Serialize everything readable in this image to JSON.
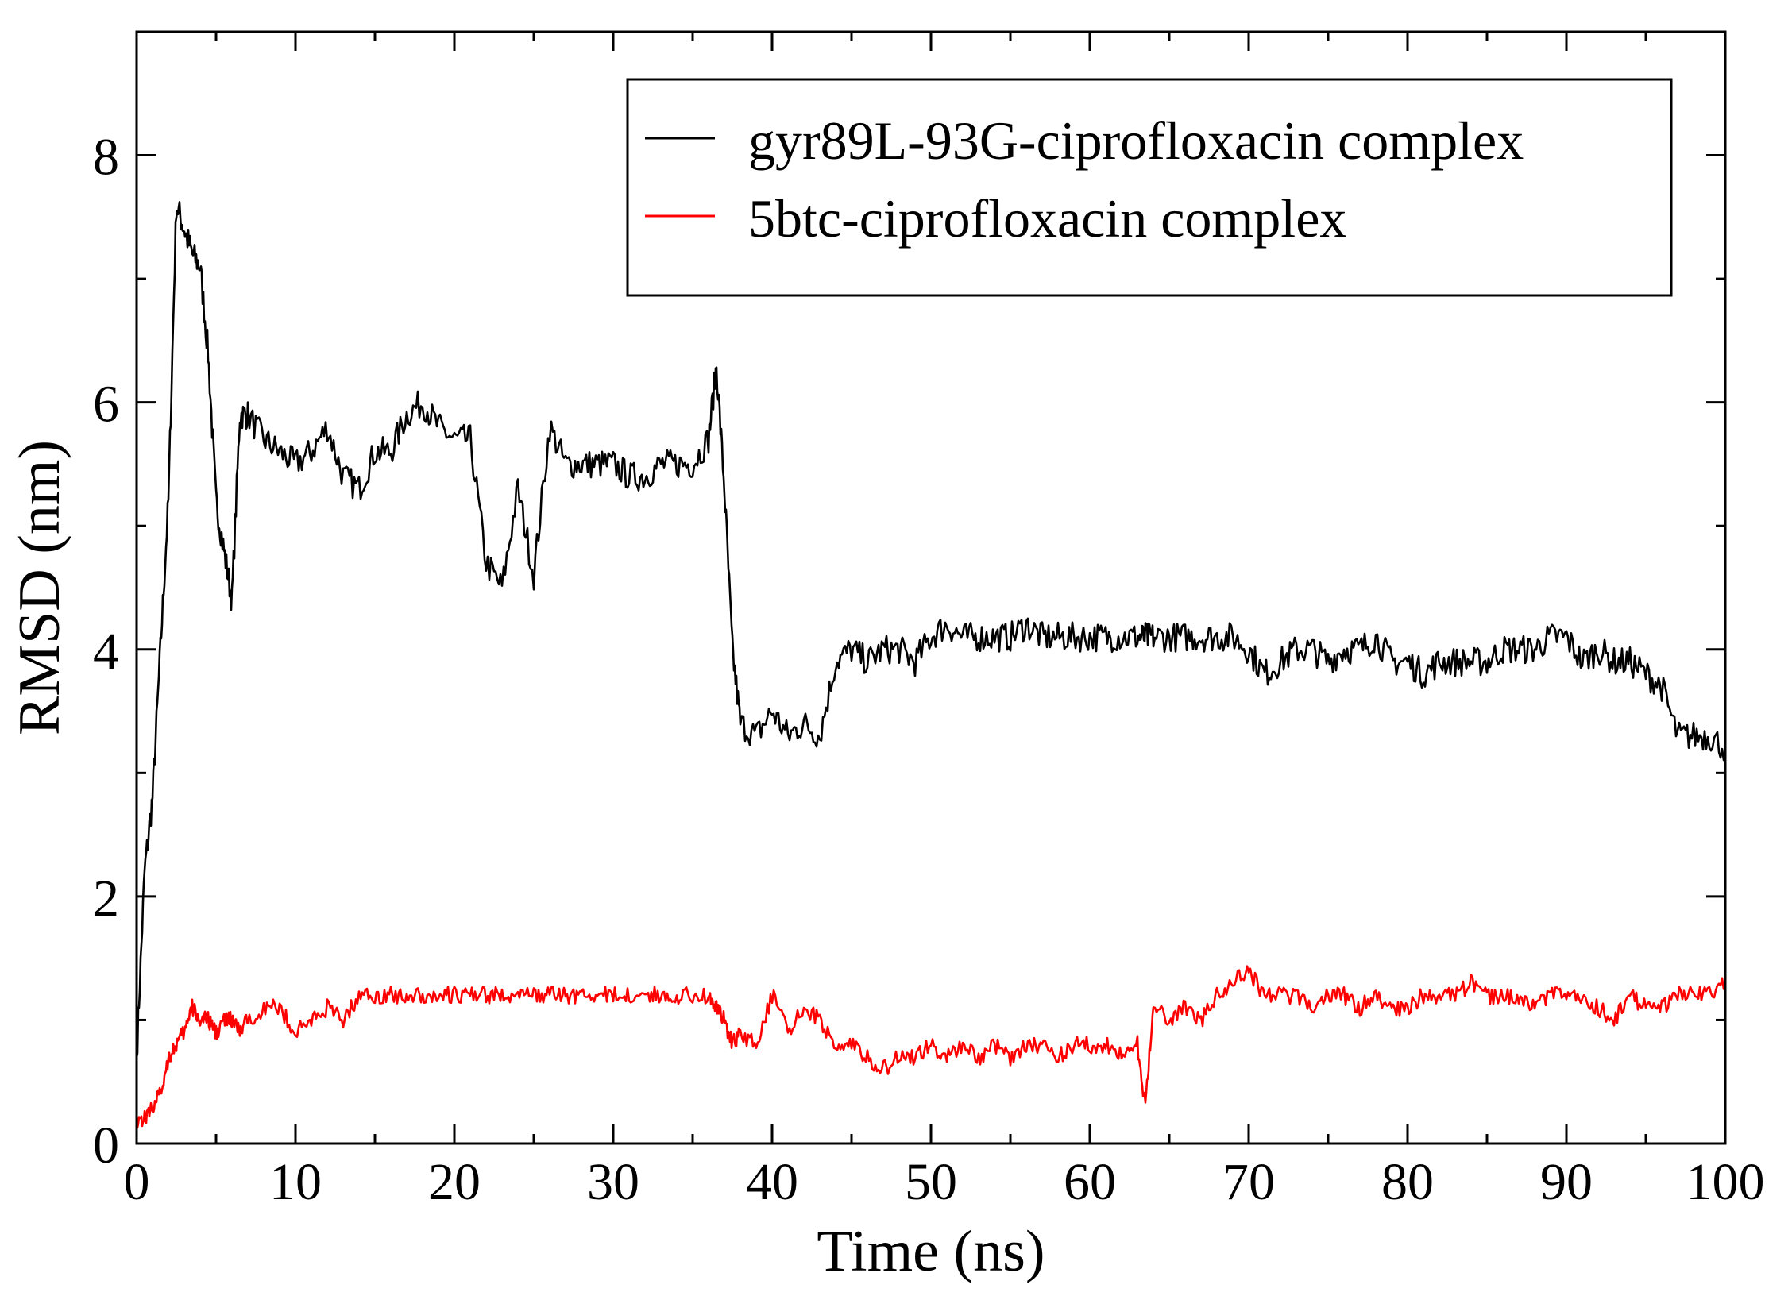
{
  "chart_data": {
    "type": "line",
    "xlabel": "Time (ns)",
    "ylabel": "RMSD (nm)",
    "xlim": [
      0,
      100
    ],
    "ylim": [
      0,
      9
    ],
    "x_ticks": [
      0,
      10,
      20,
      30,
      40,
      50,
      60,
      70,
      80,
      90,
      100
    ],
    "x_tick_labels": [
      "0",
      "10",
      "20",
      "30",
      "40",
      "50",
      "60",
      "70",
      "80",
      "90",
      "100"
    ],
    "y_ticks": [
      0,
      2,
      4,
      6,
      8
    ],
    "y_tick_labels": [
      "0",
      "2",
      "4",
      "6",
      "8"
    ],
    "grid": false,
    "legend_position": "top-right",
    "x": [
      0,
      0.5,
      1,
      1.5,
      2,
      2.5,
      3,
      3.5,
      4,
      4.5,
      5,
      5.5,
      6,
      6.5,
      7,
      8,
      9,
      10,
      11,
      12,
      13,
      14,
      15,
      16,
      17,
      18,
      19,
      20,
      21,
      22,
      23,
      24,
      25,
      26,
      27,
      28,
      29,
      30,
      31,
      32,
      33,
      34,
      35,
      36,
      36.5,
      37,
      37.5,
      38,
      39,
      40,
      41,
      42,
      43,
      44,
      45,
      46,
      47,
      48,
      49,
      50,
      51,
      52,
      53,
      54,
      55,
      56,
      57,
      58,
      59,
      60,
      61,
      62,
      63,
      63.5,
      64,
      65,
      66,
      67,
      68,
      69,
      70,
      71,
      72,
      73,
      74,
      75,
      76,
      77,
      78,
      79,
      80,
      81,
      82,
      83,
      84,
      85,
      86,
      87,
      88,
      89,
      90,
      91,
      92,
      93,
      94,
      95,
      96,
      97,
      98,
      99,
      100
    ],
    "series": [
      {
        "name": "gyr89L-93G-ciprofloxacin complex",
        "color": "#000000",
        "values": [
          0.7,
          2.2,
          2.8,
          4.0,
          5.2,
          7.6,
          7.4,
          7.2,
          7.1,
          6.4,
          5.2,
          4.8,
          4.4,
          5.9,
          5.9,
          5.7,
          5.6,
          5.5,
          5.6,
          5.8,
          5.4,
          5.3,
          5.6,
          5.6,
          5.9,
          6.0,
          5.8,
          5.7,
          5.7,
          4.7,
          4.5,
          5.3,
          4.6,
          5.8,
          5.5,
          5.5,
          5.5,
          5.5,
          5.4,
          5.4,
          5.5,
          5.5,
          5.5,
          5.7,
          6.3,
          5.3,
          4.0,
          3.4,
          3.3,
          3.5,
          3.3,
          3.4,
          3.3,
          3.9,
          4.0,
          3.9,
          4.0,
          4.0,
          3.9,
          4.1,
          4.2,
          4.1,
          4.1,
          4.1,
          4.1,
          4.2,
          4.1,
          4.1,
          4.1,
          4.1,
          4.1,
          4.1,
          4.1,
          4.1,
          4.1,
          4.1,
          4.1,
          4.1,
          4.1,
          4.1,
          4.0,
          3.8,
          3.9,
          4.0,
          4.0,
          3.9,
          4.0,
          4.0,
          4.1,
          3.9,
          3.9,
          3.8,
          3.9,
          3.9,
          3.9,
          3.9,
          4.0,
          4.0,
          4.0,
          4.1,
          4.1,
          3.9,
          4.0,
          3.9,
          3.9,
          3.8,
          3.7,
          3.3,
          3.3,
          3.3,
          3.2
        ]
      },
      {
        "name": "5btc-ciprofloxacin complex",
        "color": "#ff0000",
        "values": [
          0.2,
          0.2,
          0.3,
          0.4,
          0.7,
          0.8,
          0.9,
          1.1,
          1.0,
          1.0,
          0.9,
          1.0,
          1.0,
          0.9,
          1.0,
          1.1,
          1.1,
          0.9,
          1.0,
          1.1,
          1.0,
          1.2,
          1.2,
          1.2,
          1.2,
          1.2,
          1.2,
          1.2,
          1.2,
          1.2,
          1.2,
          1.2,
          1.2,
          1.2,
          1.2,
          1.2,
          1.2,
          1.2,
          1.2,
          1.2,
          1.2,
          1.2,
          1.2,
          1.2,
          1.1,
          1.0,
          0.8,
          0.9,
          0.8,
          1.2,
          0.9,
          1.1,
          1.0,
          0.8,
          0.8,
          0.7,
          0.6,
          0.7,
          0.7,
          0.8,
          0.7,
          0.8,
          0.7,
          0.8,
          0.7,
          0.8,
          0.8,
          0.7,
          0.8,
          0.8,
          0.8,
          0.7,
          0.8,
          0.3,
          1.1,
          1.0,
          1.1,
          1.0,
          1.2,
          1.3,
          1.4,
          1.2,
          1.2,
          1.2,
          1.1,
          1.2,
          1.2,
          1.1,
          1.2,
          1.1,
          1.1,
          1.2,
          1.2,
          1.2,
          1.3,
          1.2,
          1.2,
          1.2,
          1.1,
          1.2,
          1.2,
          1.2,
          1.1,
          1.0,
          1.2,
          1.1,
          1.1,
          1.2,
          1.2,
          1.2,
          1.3
        ]
      }
    ]
  }
}
